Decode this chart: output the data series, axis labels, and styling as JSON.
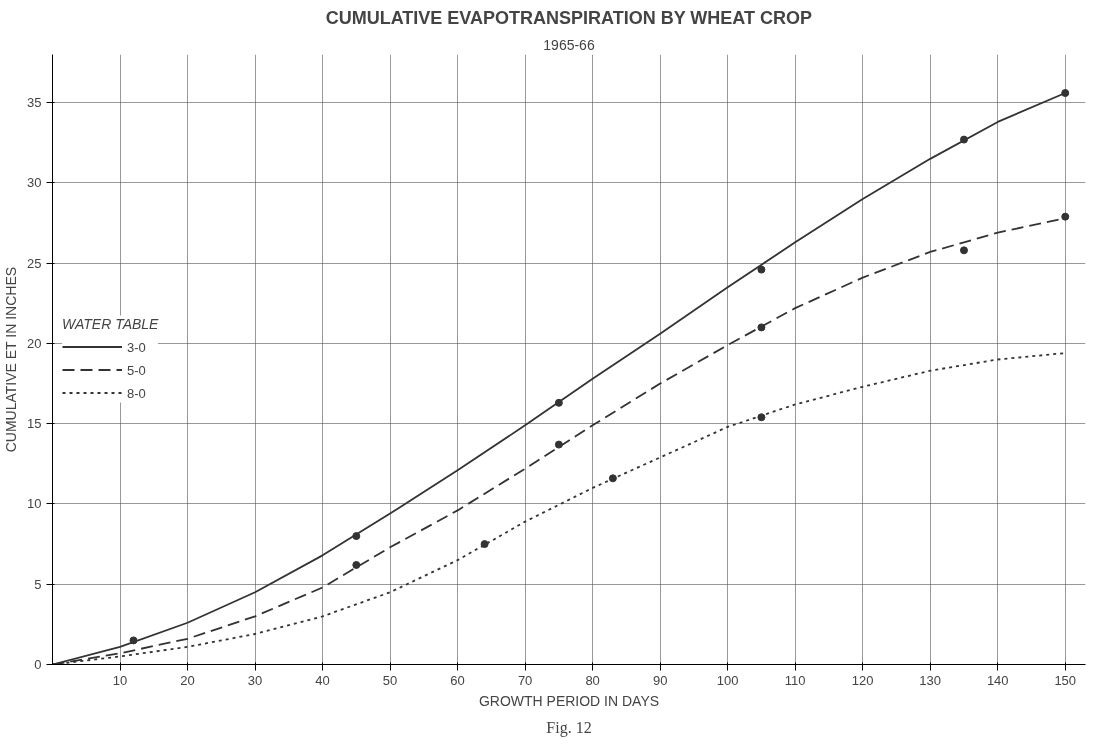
{
  "chart_data": {
    "type": "line",
    "title": "CUMULATIVE EVAPOTRANSPIRATION BY WHEAT CROP",
    "subtitle": "1965-66",
    "xlabel": "GROWTH PERIOD IN DAYS",
    "ylabel": "CUMULATIVE ET IN INCHES",
    "legend_title": "WATER TABLE",
    "annotations": [
      "Fig. 12"
    ],
    "xlim": [
      0,
      153
    ],
    "ylim": [
      0,
      38
    ],
    "xticks": [
      10,
      20,
      30,
      40,
      50,
      60,
      70,
      80,
      90,
      100,
      110,
      120,
      130,
      140,
      150
    ],
    "yticks": [
      0,
      5,
      10,
      15,
      20,
      25,
      30,
      35
    ],
    "grid": true,
    "legend": "left",
    "marker": "none",
    "series": [
      {
        "name": "3-0",
        "color": "#333333",
        "line_style": "solid",
        "x": [
          0,
          10,
          20,
          30,
          40,
          50,
          60,
          70,
          80,
          90,
          100,
          110,
          120,
          130,
          140,
          150
        ],
        "values": [
          0,
          1.1,
          2.6,
          4.5,
          6.8,
          9.4,
          12.1,
          14.9,
          17.8,
          20.6,
          23.5,
          26.3,
          29,
          31.5,
          33.8,
          35.6
        ]
      },
      {
        "name": "5-0",
        "color": "#333333",
        "line_style": "dashed",
        "x": [
          0,
          10,
          20,
          30,
          40,
          50,
          60,
          70,
          80,
          90,
          100,
          110,
          120,
          130,
          140,
          150
        ],
        "values": [
          0,
          0.7,
          1.6,
          3.0,
          4.8,
          7.3,
          9.6,
          12.2,
          14.9,
          17.5,
          19.9,
          22.2,
          24.1,
          25.7,
          26.9,
          27.8
        ]
      },
      {
        "name": "8-0",
        "color": "#333333",
        "line_style": "dotted",
        "x": [
          0,
          10,
          20,
          30,
          40,
          50,
          60,
          70,
          80,
          90,
          100,
          110,
          120,
          130,
          140,
          150
        ],
        "values": [
          0,
          0.5,
          1.1,
          1.9,
          3.0,
          4.5,
          6.5,
          8.9,
          11.0,
          12.9,
          14.8,
          16.2,
          17.3,
          18.3,
          19.0,
          19.4
        ]
      },
      {
        "type": "scatter",
        "marker": "circle",
        "color": "#333333",
        "x": [
          12,
          45,
          75,
          105,
          135,
          150
        ],
        "values": [
          1.5,
          8,
          16.3,
          24.6,
          32.7,
          35.6
        ]
      },
      {
        "type": "scatter",
        "marker": "circle",
        "color": "#333333",
        "x": [
          45,
          75,
          105,
          135,
          150
        ],
        "values": [
          6.2,
          13.7,
          21,
          25.8,
          27.9
        ]
      },
      {
        "type": "scatter",
        "marker": "circle",
        "color": "#333333",
        "x": [
          64,
          83,
          105
        ],
        "values": [
          7.5,
          11.6,
          15.4
        ]
      }
    ]
  }
}
